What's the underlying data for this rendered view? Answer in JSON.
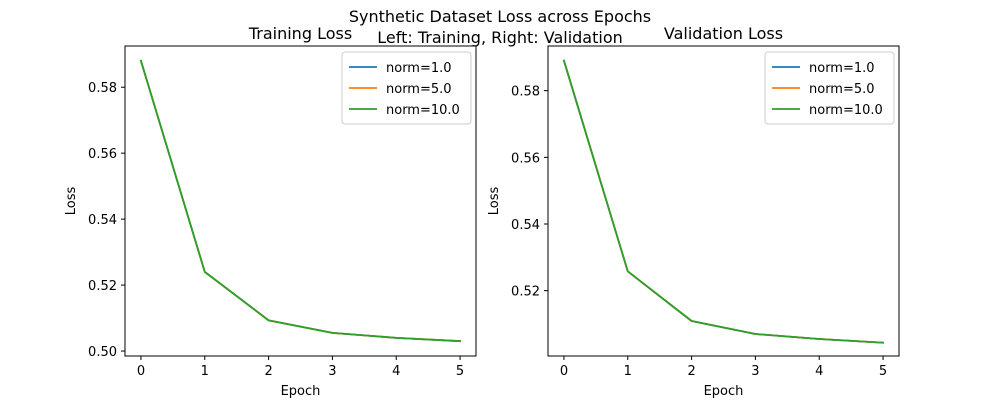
{
  "figure": {
    "suptitle_line1": "Synthetic Dataset Loss across Epochs",
    "suptitle_line2": "Left: Training, Right: Validation"
  },
  "colors": {
    "norm_1": "#1f77b4",
    "norm_5": "#ff7f0e",
    "norm_10": "#2ca02c"
  },
  "chart_data": [
    {
      "type": "line",
      "title": "Training Loss",
      "xlabel": "Epoch",
      "ylabel": "Loss",
      "x": [
        0,
        1,
        2,
        3,
        4,
        5
      ],
      "xticks": [
        "0",
        "1",
        "2",
        "3",
        "4",
        "5"
      ],
      "yticks": [
        "0.50",
        "0.52",
        "0.54",
        "0.56",
        "0.58"
      ],
      "ytick_values": [
        0.5,
        0.52,
        0.54,
        0.56,
        0.58
      ],
      "xlim": [
        -0.25,
        5.25
      ],
      "ylim": [
        0.4985,
        0.5925
      ],
      "grid": false,
      "legend_position": "top-right",
      "series": [
        {
          "name": "norm=1.0",
          "color": "#1f77b4",
          "values": [
            0.588,
            0.524,
            0.5093,
            0.5055,
            0.504,
            0.503
          ]
        },
        {
          "name": "norm=5.0",
          "color": "#ff7f0e",
          "values": [
            0.588,
            0.524,
            0.5093,
            0.5055,
            0.504,
            0.503
          ]
        },
        {
          "name": "norm=10.0",
          "color": "#2ca02c",
          "values": [
            0.588,
            0.524,
            0.5093,
            0.5055,
            0.504,
            0.503
          ]
        }
      ]
    },
    {
      "type": "line",
      "title": "Validation Loss",
      "xlabel": "Epoch",
      "ylabel": "Loss",
      "x": [
        0,
        1,
        2,
        3,
        4,
        5
      ],
      "xticks": [
        "0",
        "1",
        "2",
        "3",
        "4",
        "5"
      ],
      "yticks": [
        "0.52",
        "0.54",
        "0.56",
        "0.58"
      ],
      "ytick_values": [
        0.52,
        0.54,
        0.56,
        0.58
      ],
      "xlim": [
        -0.25,
        5.25
      ],
      "ylim": [
        0.5004,
        0.5934
      ],
      "grid": false,
      "legend_position": "top-right",
      "series": [
        {
          "name": "norm=1.0",
          "color": "#1f77b4",
          "values": [
            0.589,
            0.5258,
            0.5109,
            0.507,
            0.5055,
            0.5044
          ]
        },
        {
          "name": "norm=5.0",
          "color": "#ff7f0e",
          "values": [
            0.589,
            0.5258,
            0.5109,
            0.507,
            0.5055,
            0.5044
          ]
        },
        {
          "name": "norm=10.0",
          "color": "#2ca02c",
          "values": [
            0.589,
            0.5258,
            0.5109,
            0.507,
            0.5055,
            0.5044
          ]
        }
      ]
    }
  ]
}
